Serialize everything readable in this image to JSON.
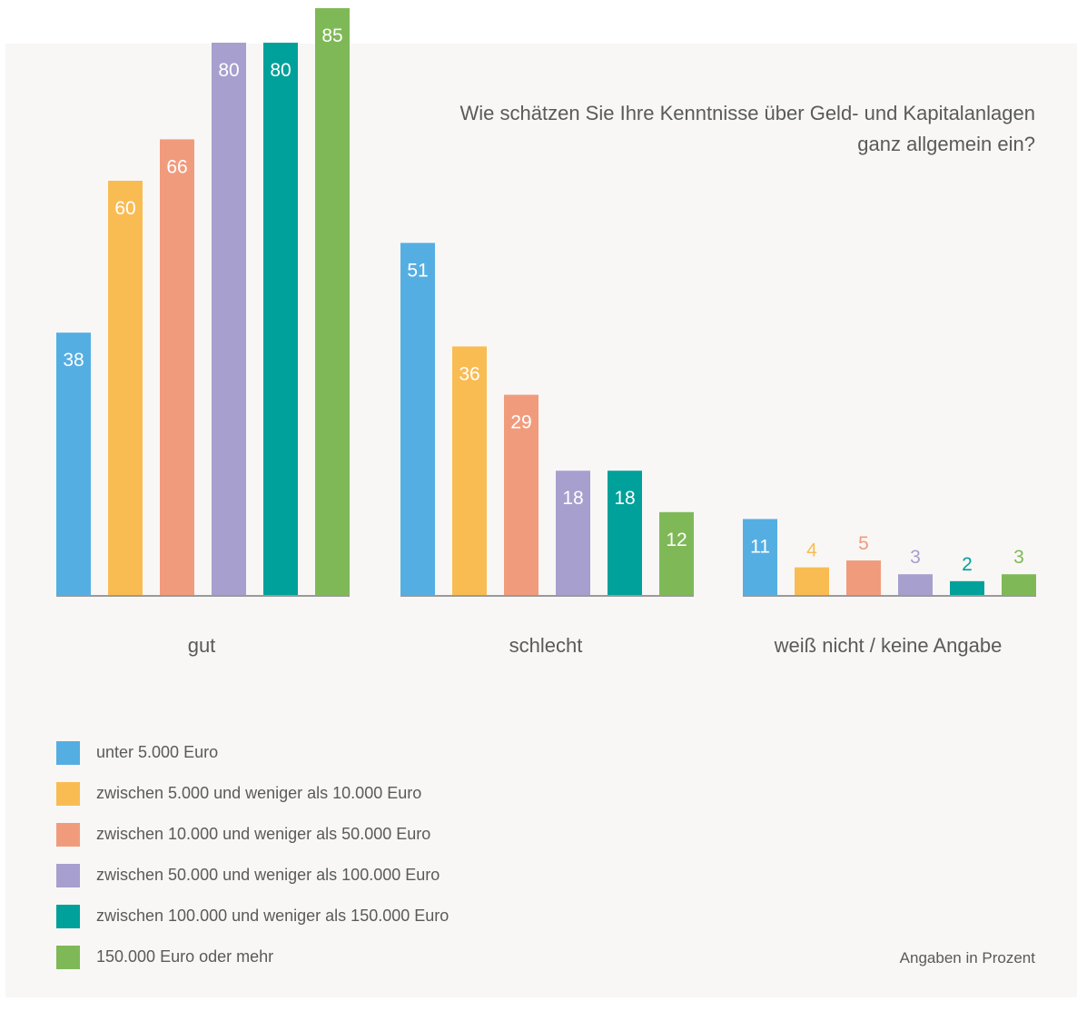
{
  "chart_data": {
    "type": "bar",
    "title": "Wie schätzen Sie Ihre Kenntnisse über Geld- und Kapitalanlagen ganz allgemein ein?",
    "categories": [
      "gut",
      "schlecht",
      "weiß nicht / keine Angabe"
    ],
    "series": [
      {
        "name": "unter 5.000 Euro",
        "color": "#55aee2",
        "values": [
          38,
          51,
          11
        ]
      },
      {
        "name": "zwischen 5.000 und weniger als 10.000 Euro",
        "color": "#f9bc53",
        "values": [
          60,
          36,
          4
        ]
      },
      {
        "name": "zwischen 10.000 und weniger als 50.000 Euro",
        "color": "#f19b7d",
        "values": [
          66,
          29,
          5
        ]
      },
      {
        "name": "zwischen 50.000 und weniger als 100.000 Euro",
        "color": "#a79fce",
        "values": [
          80,
          18,
          3
        ]
      },
      {
        "name": "zwischen 100.000 und weniger als 150.000 Euro",
        "color": "#00a19a",
        "values": [
          80,
          18,
          2
        ]
      },
      {
        "name": "150.000 Euro oder mehr",
        "color": "#7fb957",
        "values": [
          85,
          12,
          3
        ]
      }
    ],
    "ylim": [
      0,
      85
    ],
    "grid": false,
    "legend": "bottom-left",
    "note": "Angaben in Prozent"
  }
}
